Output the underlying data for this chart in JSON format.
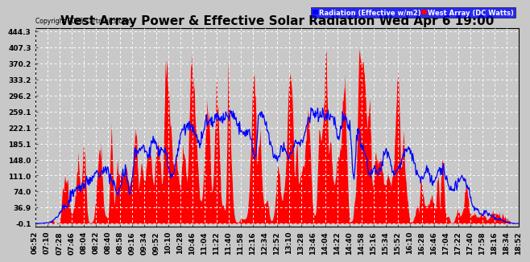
{
  "title": "West Array Power & Effective Solar Radiation Wed Apr 6 19:00",
  "copyright": "Copyright 2016 Cartronics.com",
  "legend_radiation": "Radiation (Effective w/m2)",
  "legend_west": "West Array (DC Watts)",
  "yticks": [
    444.3,
    407.3,
    370.2,
    333.2,
    296.2,
    259.1,
    222.1,
    185.1,
    148.0,
    111.0,
    74.0,
    36.9,
    -0.1
  ],
  "ymin": -0.1,
  "ymax": 444.3,
  "background_color": "#c8c8c8",
  "plot_bg_color": "#c8c8c8",
  "red_color": "#ff0000",
  "blue_color": "#0000ff",
  "grid_color": "#ffffff",
  "title_fontsize": 11,
  "tick_fontsize": 6.5,
  "xtick_labels": [
    "06:52",
    "07:10",
    "07:28",
    "07:46",
    "08:04",
    "08:22",
    "08:40",
    "08:58",
    "09:16",
    "09:34",
    "09:52",
    "10:10",
    "10:28",
    "10:46",
    "11:04",
    "11:22",
    "11:40",
    "11:58",
    "12:16",
    "12:34",
    "12:52",
    "13:10",
    "13:28",
    "13:46",
    "14:04",
    "14:22",
    "14:40",
    "14:58",
    "15:16",
    "15:34",
    "15:52",
    "16:10",
    "16:28",
    "16:46",
    "17:04",
    "17:22",
    "17:40",
    "17:58",
    "18:16",
    "18:34",
    "18:52"
  ]
}
